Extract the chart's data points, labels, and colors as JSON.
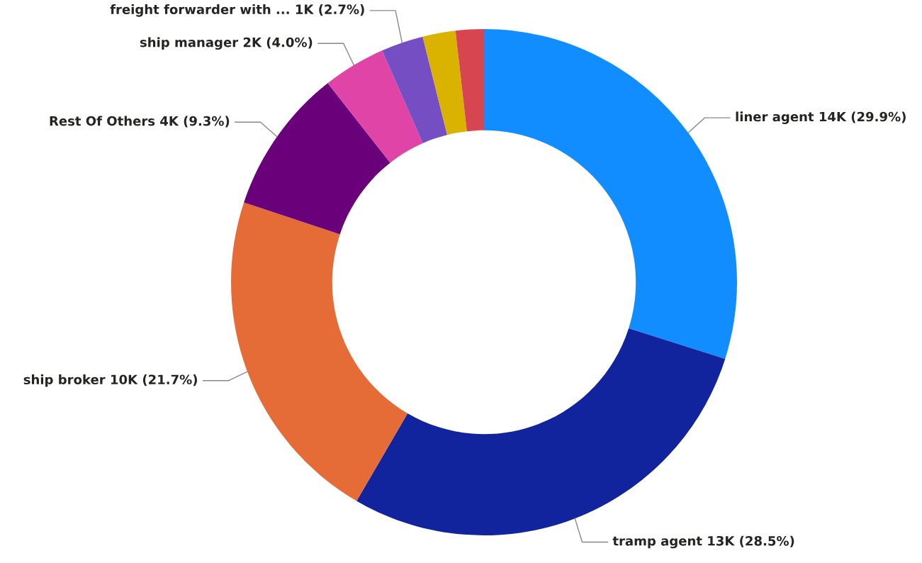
{
  "chart_data": {
    "type": "donut",
    "categories": [
      "liner agent",
      "tramp agent",
      "ship broker",
      "Rest Of Others",
      "ship manager",
      "freight forwarder with ...",
      null,
      null
    ],
    "values": [
      29.9,
      28.5,
      21.7,
      9.3,
      4.0,
      2.7,
      2.1,
      1.8
    ],
    "value_labels": [
      "14K (29.9%)",
      "13K (28.5%)",
      "10K (21.7%)",
      "4K (9.3%)",
      "2K (4.0%)",
      "1K (2.7%)",
      null,
      null
    ],
    "colors": [
      "#118dff",
      "#12239e",
      "#e66c37",
      "#6b007b",
      "#e044a7",
      "#744ec2",
      "#d9b300",
      "#d64550"
    ],
    "legend": false
  }
}
